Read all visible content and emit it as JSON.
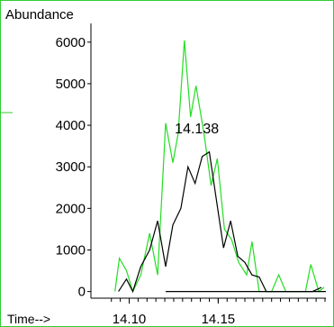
{
  "colors": {
    "background": "#ffffff",
    "frame": "#33cc33",
    "green_series": "#22dd22",
    "black_series": "#000000",
    "axis": "#000000"
  },
  "chart_data": {
    "type": "line",
    "title": "",
    "ylabel": "Abundance",
    "xlabel": "Time-->",
    "ylim": [
      -160,
      6450
    ],
    "xlim": [
      14.0785,
      14.2105
    ],
    "y_ticks": [
      {
        "value": 0,
        "label": "0"
      },
      {
        "value": 1000,
        "label": "1000"
      },
      {
        "value": 2000,
        "label": "2000"
      },
      {
        "value": 3000,
        "label": "3000"
      },
      {
        "value": 4000,
        "label": "4000"
      },
      {
        "value": 5000,
        "label": "5000"
      },
      {
        "value": 6000,
        "label": "6000"
      }
    ],
    "x_ticks": [
      {
        "value": 14.1,
        "label": "14.10"
      },
      {
        "value": 14.15,
        "label": "14.15"
      }
    ],
    "x_minor_ticks": [
      14.09,
      14.095,
      14.1,
      14.105,
      14.11,
      14.115,
      14.12,
      14.125,
      14.13,
      14.135,
      14.14,
      14.145,
      14.15,
      14.155,
      14.16,
      14.165,
      14.17,
      14.175,
      14.18,
      14.185,
      14.19,
      14.195,
      14.2,
      14.205,
      14.21
    ],
    "annotations": [
      {
        "text": "14.138",
        "x": 14.138,
        "y": 3500
      }
    ],
    "series": [
      {
        "color": "#22dd22",
        "points": [
          [
            14.092,
            0
          ],
          [
            14.0945,
            800
          ],
          [
            14.0985,
            500
          ],
          [
            14.102,
            0
          ],
          [
            14.1065,
            400
          ],
          [
            14.1115,
            1400
          ],
          [
            14.116,
            400
          ],
          [
            14.1205,
            4050
          ],
          [
            14.1245,
            3100
          ],
          [
            14.1275,
            3800
          ],
          [
            14.131,
            6040
          ],
          [
            14.1345,
            4200
          ],
          [
            14.1375,
            4950
          ],
          [
            14.142,
            3800
          ],
          [
            14.146,
            2550
          ],
          [
            14.1495,
            3200
          ],
          [
            14.1535,
            1500
          ],
          [
            14.1575,
            1250
          ],
          [
            14.1615,
            700
          ],
          [
            14.166,
            400
          ],
          [
            14.169,
            1200
          ],
          [
            14.173,
            0
          ],
          [
            14.18,
            0
          ],
          [
            14.184,
            400
          ],
          [
            14.188,
            0
          ],
          [
            14.195,
            0
          ],
          [
            14.199,
            0
          ],
          [
            14.202,
            650
          ],
          [
            14.2065,
            0
          ],
          [
            14.2095,
            100
          ]
        ]
      },
      {
        "color": "#000000",
        "points": [
          [
            14.094,
            0
          ],
          [
            14.0985,
            300
          ],
          [
            14.102,
            0
          ],
          [
            14.1065,
            600
          ],
          [
            14.1115,
            1000
          ],
          [
            14.116,
            1700
          ],
          [
            14.1205,
            600
          ],
          [
            14.1245,
            1600
          ],
          [
            14.129,
            2000
          ],
          [
            14.133,
            3000
          ],
          [
            14.137,
            2600
          ],
          [
            14.141,
            3250
          ],
          [
            14.145,
            3360
          ],
          [
            14.149,
            2200
          ],
          [
            14.153,
            1050
          ],
          [
            14.157,
            1700
          ],
          [
            14.161,
            850
          ],
          [
            14.165,
            700
          ],
          [
            14.169,
            400
          ],
          [
            14.173,
            350
          ],
          [
            14.177,
            0
          ],
          [
            14.183,
            0
          ],
          [
            14.19,
            0
          ],
          [
            14.197,
            0
          ],
          [
            14.203,
            0
          ],
          [
            14.208,
            100
          ]
        ]
      }
    ],
    "baseline_segment": {
      "x": [
        14.1205,
        14.2105
      ],
      "y": 0
    }
  }
}
